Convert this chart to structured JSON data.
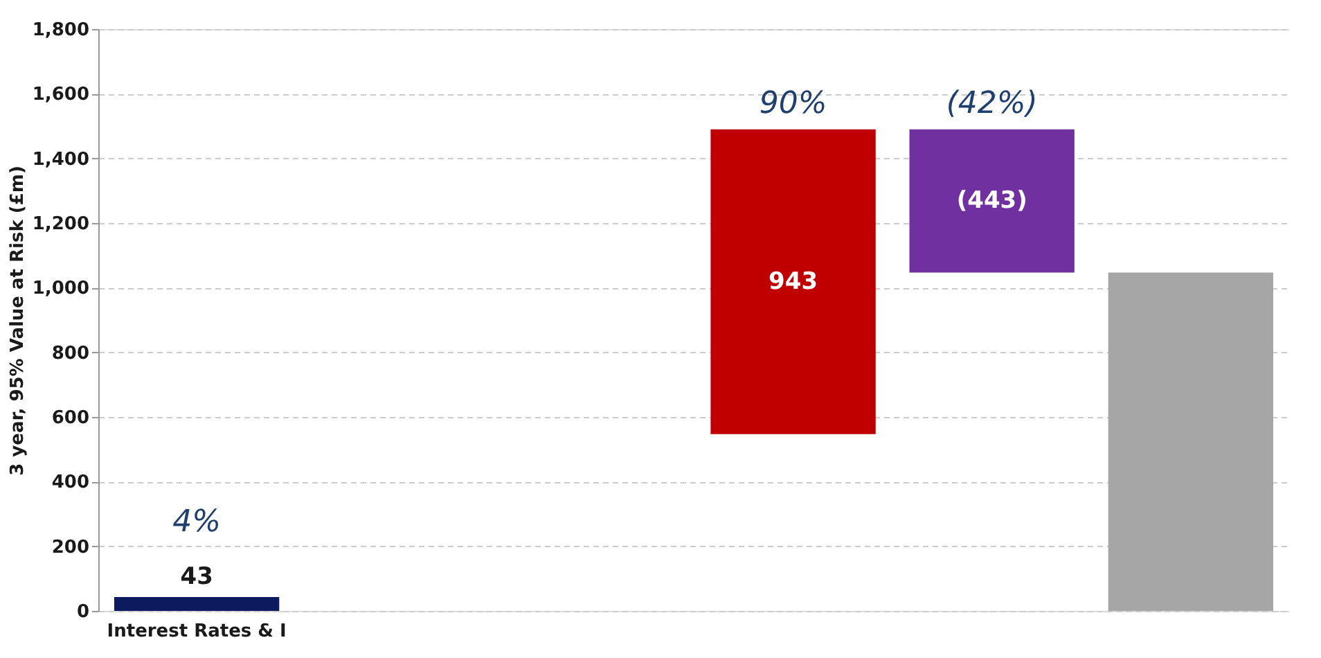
{
  "chart_data": {
    "type": "bar",
    "ylabel": "3 year, 95% Value at Risk (£m)",
    "categories": [
      "Interest Rates & I",
      null,
      null,
      null,
      null,
      null
    ],
    "values": [
      43,
      null,
      null,
      943,
      -443,
      1047
    ],
    "base": [
      0,
      null,
      null,
      547,
      1490,
      0
    ],
    "colors": [
      "#0d1b5e",
      null,
      null,
      "#c00000",
      "#7030a0",
      "#a6a6a6"
    ],
    "value_labels": [
      "43",
      null,
      null,
      "943",
      "(443)",
      null
    ],
    "annotations": [
      "4%",
      "90%",
      "(42%)"
    ],
    "ylim": [
      0,
      1800
    ],
    "yticks": [
      0,
      200,
      400,
      600,
      800,
      {
        "value": 1000,
        "label": "1,000"
      },
      {
        "value": 1200,
        "label": "1,200"
      },
      {
        "value": 1400,
        "label": "1,400"
      },
      {
        "value": 1600,
        "label": "1,600"
      },
      {
        "value": 1800,
        "label": "1,800"
      }
    ],
    "grid": "y"
  }
}
